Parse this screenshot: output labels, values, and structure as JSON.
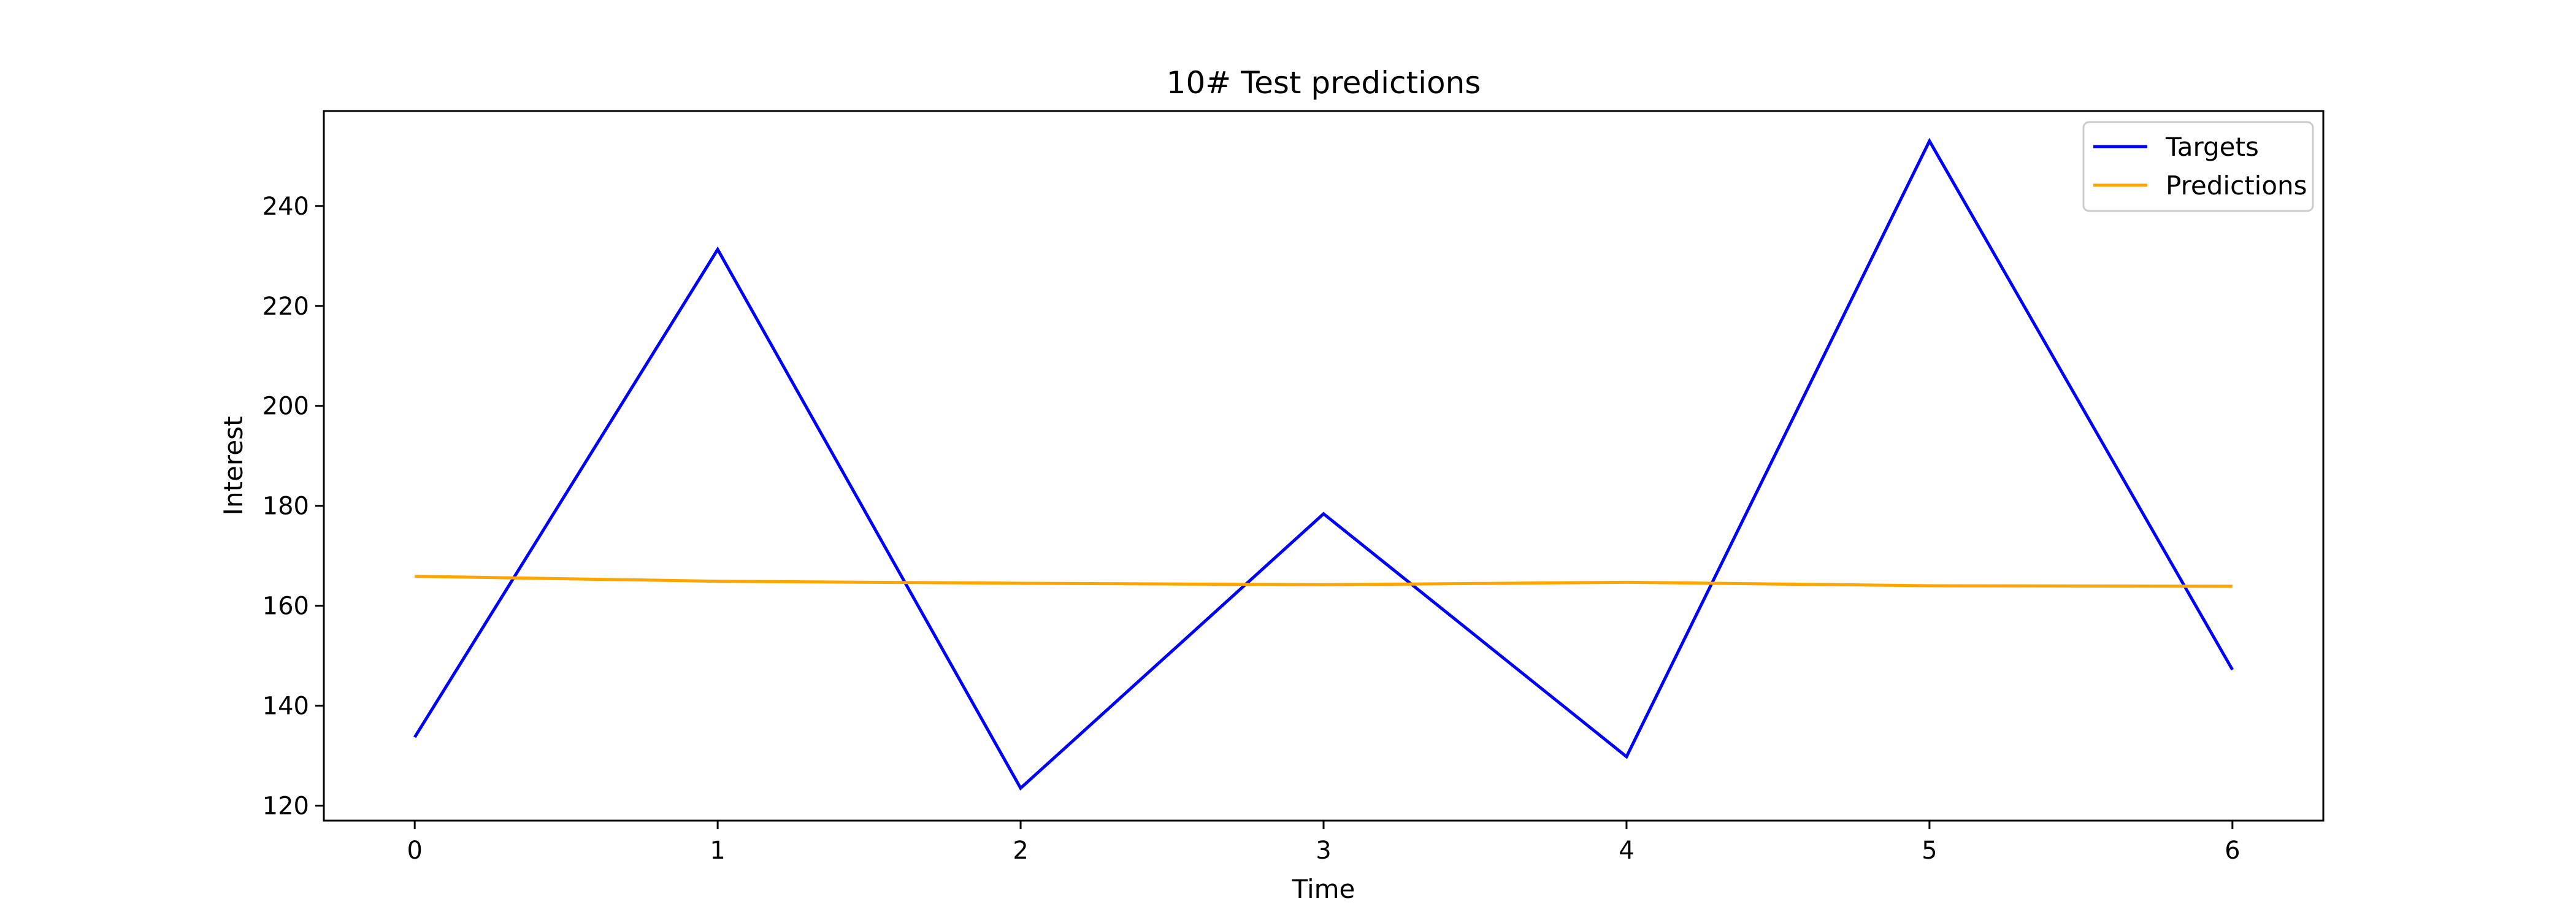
{
  "chart_data": {
    "type": "line",
    "title": "10# Test predictions",
    "xlabel": "Time",
    "ylabel": "Interest",
    "x": [
      0,
      1,
      2,
      3,
      4,
      5,
      6
    ],
    "series": [
      {
        "name": "Targets",
        "color": "#0000ff",
        "values": [
          133.7,
          231.3,
          123.5,
          178.4,
          129.8,
          253.0,
          147.2
        ]
      },
      {
        "name": "Predictions",
        "color": "#ffa500",
        "values": [
          165.9,
          164.9,
          164.5,
          164.2,
          164.7,
          164.0,
          163.9
        ]
      }
    ],
    "xlim": [
      -0.3,
      6.3
    ],
    "ylim": [
      117,
      259
    ],
    "x_ticks": [
      0,
      1,
      2,
      3,
      4,
      5,
      6
    ],
    "y_ticks": [
      120,
      140,
      160,
      180,
      200,
      220,
      240
    ],
    "grid": false,
    "legend_position": "top-right"
  }
}
